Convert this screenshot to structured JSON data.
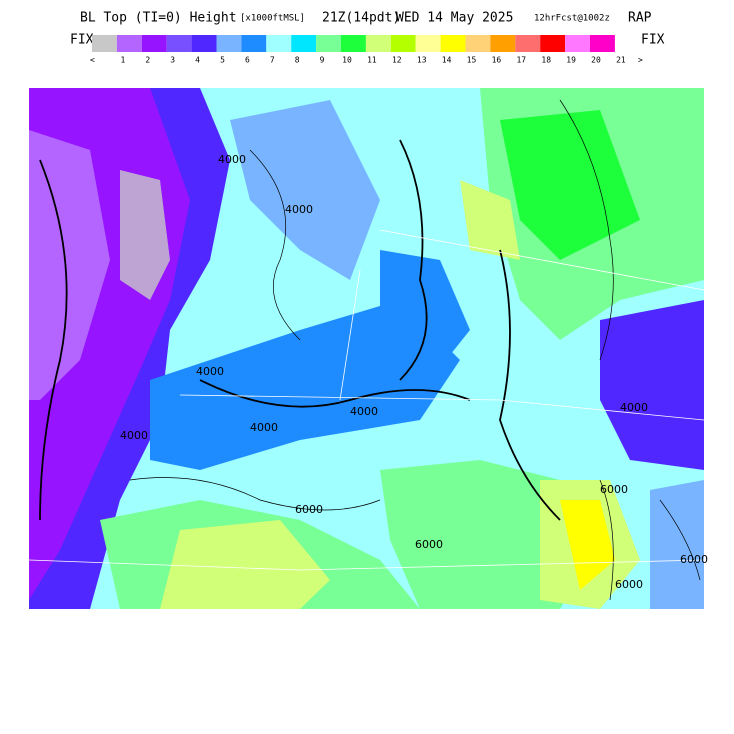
{
  "header": {
    "title": "BL Top (TI=0) Height",
    "units": "[x1000ftMSL]",
    "valid": "21Z(14pdt)",
    "date": "WED 14 May 2025",
    "forecast": "12hrFcst@1002z",
    "model": "RAP"
  },
  "legend": {
    "left_label": "FIX",
    "right_label": "FIX",
    "low_marker": "<",
    "high_marker": ">",
    "ticks": [
      "1",
      "2",
      "3",
      "4",
      "5",
      "6",
      "7",
      "8",
      "9",
      "10",
      "11",
      "12",
      "13",
      "14",
      "15",
      "16",
      "17",
      "18",
      "19",
      "20",
      "21"
    ],
    "colors": [
      "#c8c8c8",
      "#b464ff",
      "#9614ff",
      "#7850ff",
      "#5028ff",
      "#78b4ff",
      "#1e8cff",
      "#a0ffff",
      "#00e6ff",
      "#78ff96",
      "#1eff3c",
      "#d2ff78",
      "#b4ff00",
      "#ffff96",
      "#ffff00",
      "#ffd278",
      "#ffa000",
      "#ff6e6e",
      "#ff0000",
      "#ff78ff",
      "#ff00c8"
    ]
  },
  "map": {
    "contour_labels": [
      "4000",
      "4000",
      "4000",
      "4000",
      "4000",
      "4000",
      "4000",
      "6000",
      "6000",
      "6000",
      "6000",
      "6000"
    ]
  }
}
